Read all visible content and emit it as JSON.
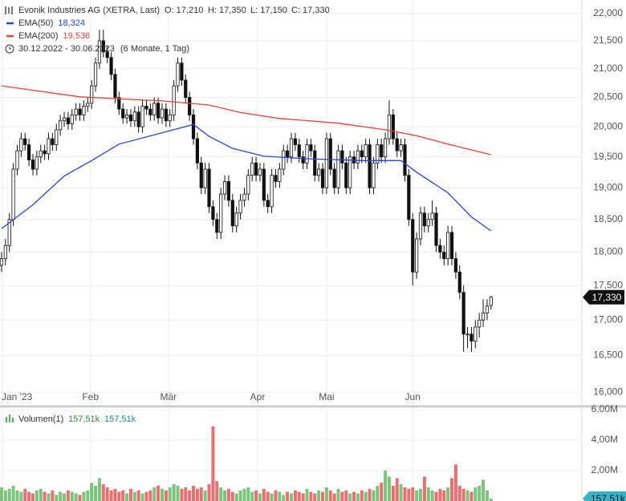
{
  "chart_data": {
    "type": "candlestick",
    "title": "Evonik Industries AG (XETRA, Last)",
    "ohlc_labels": [
      "O: 17,210",
      "H: 17,350",
      "L: 17,150",
      "C: 17,330"
    ],
    "period": "30.12.2022 - 30.06.2023",
    "period_note": "(6 Monate, 1 Tag)",
    "log": true,
    "grid": true,
    "ylim": [
      15830,
      22250
    ],
    "yticks": [
      {
        "value": 16000,
        "label": "16,000"
      },
      {
        "value": 16500,
        "label": "16,500"
      },
      {
        "value": 17000,
        "label": "17,000"
      },
      {
        "value": 17500,
        "label": "17,500"
      },
      {
        "value": 18000,
        "label": "18,000"
      },
      {
        "value": 18500,
        "label": "18,500"
      },
      {
        "value": 19000,
        "label": "19,000"
      },
      {
        "value": 19500,
        "label": "19,500"
      },
      {
        "value": 20000,
        "label": "20,000"
      },
      {
        "value": 20500,
        "label": "20,500"
      },
      {
        "value": 21000,
        "label": "21,000"
      },
      {
        "value": 21500,
        "label": "21,500"
      },
      {
        "value": 22000,
        "label": "22,000"
      }
    ],
    "xlim": [
      -0.4,
      148.2
    ],
    "xticks": [
      {
        "value": 0.2,
        "label": "Jan '23"
      },
      {
        "value": 22.7,
        "label": "Feb"
      },
      {
        "value": 42.6,
        "label": "Mär"
      },
      {
        "value": 65.4,
        "label": "Apr"
      },
      {
        "value": 83,
        "label": "Mai"
      },
      {
        "value": 105,
        "label": "Jun"
      }
    ],
    "last_label": "17,330",
    "open": [
      17800,
      17900,
      18100,
      18500,
      19300,
      19600,
      19800,
      19700,
      19450,
      19300,
      19500,
      19600,
      19550,
      19800,
      19700,
      19950,
      20100,
      20150,
      20050,
      20200,
      20300,
      20200,
      20350,
      20400,
      20700,
      21100,
      21500,
      21300,
      21200,
      20900,
      20500,
      20300,
      20150,
      20200,
      20100,
      20250,
      20000,
      20350,
      20300,
      20200,
      20400,
      20150,
      20300,
      20100,
      20200,
      20700,
      21100,
      20800,
      20500,
      20200,
      19800,
      19400,
      19000,
      19300,
      18700,
      18500,
      18300,
      18900,
      19100,
      18800,
      18400,
      18600,
      18800,
      18900,
      19200,
      19400,
      19200,
      19300,
      18800,
      18700,
      19200,
      19100,
      19300,
      19600,
      19500,
      19800,
      19700,
      19500,
      19400,
      19700,
      19600,
      19200,
      19300,
      19000,
      19800,
      19300,
      19000,
      19600,
      19400,
      19000,
      19500,
      19400,
      19600,
      19500,
      19700,
      19000,
      19400,
      19700,
      19500,
      19800,
      20200,
      19800,
      19600,
      19700,
      19200,
      18500,
      17700,
      18200,
      18600,
      18400,
      18500,
      18600,
      18100,
      18000,
      17900,
      18300,
      17900,
      17700,
      17400,
      16800,
      16800,
      16700,
      16900,
      17000,
      17100,
      17210
    ],
    "high": [
      18000,
      18200,
      18600,
      19400,
      19700,
      19900,
      19900,
      19800,
      19550,
      19600,
      19700,
      19700,
      19900,
      19900,
      20050,
      20200,
      20250,
      20250,
      20300,
      20400,
      20400,
      20450,
      20500,
      20800,
      21200,
      21700,
      21700,
      21400,
      21300,
      21000,
      20600,
      20400,
      20300,
      20300,
      20350,
      20350,
      20450,
      20450,
      20400,
      20500,
      20500,
      20400,
      20400,
      20300,
      20800,
      21200,
      21200,
      20900,
      20600,
      20300,
      19900,
      19500,
      19400,
      19400,
      18800,
      18600,
      19000,
      19200,
      19200,
      18900,
      18700,
      18900,
      19000,
      19300,
      19500,
      19500,
      19400,
      19400,
      18900,
      19300,
      19300,
      19400,
      19700,
      19700,
      19900,
      19900,
      19800,
      19600,
      19800,
      19800,
      19700,
      19400,
      19400,
      19900,
      19900,
      19400,
      19700,
      19700,
      19500,
      19600,
      19600,
      19700,
      19700,
      19800,
      19800,
      19500,
      19800,
      19800,
      19900,
      20450,
      20300,
      19900,
      19800,
      19800,
      19300,
      18600,
      18300,
      18700,
      18700,
      18600,
      18800,
      18700,
      18200,
      18100,
      18400,
      18400,
      18000,
      17800,
      17500,
      16900,
      16900,
      17000,
      17100,
      17300,
      17300,
      17350
    ],
    "low": [
      17700,
      17800,
      18000,
      18400,
      19200,
      19500,
      19600,
      19350,
      19200,
      19200,
      19400,
      19450,
      19450,
      19600,
      19600,
      19850,
      20000,
      19950,
      19950,
      20100,
      20100,
      20100,
      20250,
      20300,
      20600,
      21000,
      21200,
      21100,
      20800,
      20400,
      20200,
      20050,
      20050,
      20000,
      20000,
      19900,
      19900,
      20200,
      20100,
      20100,
      20050,
      20050,
      20000,
      20000,
      20100,
      20600,
      20700,
      20400,
      20100,
      19700,
      19300,
      18900,
      18900,
      18600,
      18400,
      18200,
      18200,
      18800,
      18700,
      18300,
      18300,
      18500,
      18700,
      18800,
      19100,
      19100,
      19100,
      18700,
      18600,
      18600,
      19000,
      19000,
      19200,
      19400,
      19400,
      19600,
      19400,
      19300,
      19300,
      19500,
      19100,
      19100,
      18900,
      18900,
      19200,
      18900,
      18900,
      19300,
      18900,
      18900,
      19300,
      19300,
      19400,
      19400,
      18900,
      18900,
      19300,
      19400,
      19400,
      19700,
      19700,
      19500,
      19500,
      19100,
      18400,
      17500,
      17600,
      18100,
      18300,
      18300,
      18400,
      18000,
      17900,
      17800,
      17800,
      17800,
      17600,
      17300,
      16550,
      16600,
      16550,
      16600,
      16750,
      16900,
      17000,
      17150
    ],
    "close": [
      17900,
      18100,
      18500,
      19300,
      19600,
      19800,
      19700,
      19450,
      19300,
      19500,
      19600,
      19550,
      19800,
      19700,
      19950,
      20100,
      20150,
      20050,
      20200,
      20300,
      20200,
      20350,
      20400,
      20700,
      21100,
      21500,
      21300,
      21200,
      20900,
      20500,
      20300,
      20150,
      20200,
      20100,
      20250,
      20000,
      20350,
      20300,
      20200,
      20400,
      20150,
      20300,
      20100,
      20200,
      20700,
      21100,
      20800,
      20500,
      20200,
      19800,
      19400,
      19000,
      19300,
      18700,
      18500,
      18300,
      18900,
      19100,
      18800,
      18400,
      18600,
      18800,
      18900,
      19200,
      19400,
      19200,
      19300,
      18800,
      18700,
      19200,
      19100,
      19300,
      19600,
      19500,
      19800,
      19700,
      19500,
      19400,
      19700,
      19600,
      19200,
      19300,
      19000,
      19800,
      19300,
      19000,
      19600,
      19400,
      19000,
      19500,
      19400,
      19600,
      19500,
      19700,
      19000,
      19400,
      19700,
      19500,
      19800,
      20200,
      19800,
      19600,
      19700,
      19200,
      18500,
      17700,
      18200,
      18600,
      18400,
      18500,
      18600,
      18100,
      18000,
      17900,
      18300,
      17900,
      17700,
      17400,
      16800,
      16800,
      16700,
      16900,
      17000,
      17100,
      17200,
      17330
    ],
    "series": [
      {
        "name": "EMA(50)",
        "color": "#2446d8",
        "value_label": "18,324",
        "x": [
          0,
          8,
          16,
          23,
          30,
          41,
          49,
          53,
          59,
          67,
          78,
          92,
          102,
          106,
          114,
          120,
          125
        ],
        "values": [
          18360,
          18730,
          19190,
          19440,
          19710,
          19900,
          20040,
          19840,
          19640,
          19510,
          19470,
          19440,
          19440,
          19250,
          18920,
          18540,
          18324
        ]
      },
      {
        "name": "EMA(200)",
        "color": "#e8413a",
        "value_label": "19,536",
        "x": [
          0,
          20,
          41,
          53,
          61,
          71,
          86,
          98,
          106,
          114,
          125
        ],
        "values": [
          20700,
          20510,
          20440,
          20370,
          20240,
          20140,
          20060,
          19950,
          19850,
          19710,
          19536
        ]
      }
    ],
    "volume": {
      "type": "bar",
      "name": "Volumen(1)",
      "legend_values": [
        "157,51k",
        "157,51k"
      ],
      "up_color": "#7cc47c",
      "down_color": "#e87070",
      "ylim": [
        0,
        6
      ],
      "yticks": [
        {
          "value": 2,
          "label": "2,00M"
        },
        {
          "value": 4,
          "label": "4,00M"
        },
        {
          "value": 6,
          "label": "6,00M"
        }
      ],
      "last_label": "157,51k",
      "values": [
        0.9,
        0.7,
        0.8,
        1.0,
        0.7,
        0.6,
        0.8,
        0.6,
        0.5,
        0.7,
        0.8,
        0.6,
        0.5,
        0.7,
        0.4,
        0.6,
        0.5,
        0.7,
        0.6,
        0.5,
        0.4,
        0.6,
        0.7,
        1.2,
        1.0,
        1.5,
        1.1,
        0.9,
        0.7,
        0.8,
        0.6,
        0.7,
        0.5,
        0.8,
        0.6,
        0.7,
        0.5,
        0.6,
        0.7,
        0.9,
        1.0,
        0.8,
        0.7,
        0.9,
        1.1,
        1.0,
        0.8,
        0.9,
        0.7,
        1.0,
        0.8,
        0.9,
        0.7,
        1.1,
        4.9,
        1.3,
        0.9,
        0.7,
        0.8,
        0.6,
        0.5,
        0.7,
        0.8,
        0.9,
        0.6,
        0.7,
        0.5,
        0.8,
        0.6,
        0.5,
        0.7,
        0.6,
        0.4,
        0.6,
        0.5,
        0.7,
        0.6,
        0.5,
        0.8,
        0.6,
        0.5,
        0.7,
        0.6,
        0.9,
        0.7,
        0.5,
        0.8,
        0.6,
        0.7,
        0.5,
        0.6,
        0.5,
        0.7,
        0.6,
        0.8,
        0.7,
        1.0,
        1.2,
        2.0,
        1.6,
        1.0,
        1.5,
        1.1,
        0.9,
        0.8,
        0.9,
        0.7,
        0.8,
        1.6,
        0.9,
        0.7,
        0.6,
        0.8,
        0.7,
        0.9,
        1.5,
        2.4,
        1.0,
        0.8,
        0.7,
        0.6,
        0.9,
        1.0,
        1.4,
        0.7,
        0.15751
      ]
    }
  }
}
